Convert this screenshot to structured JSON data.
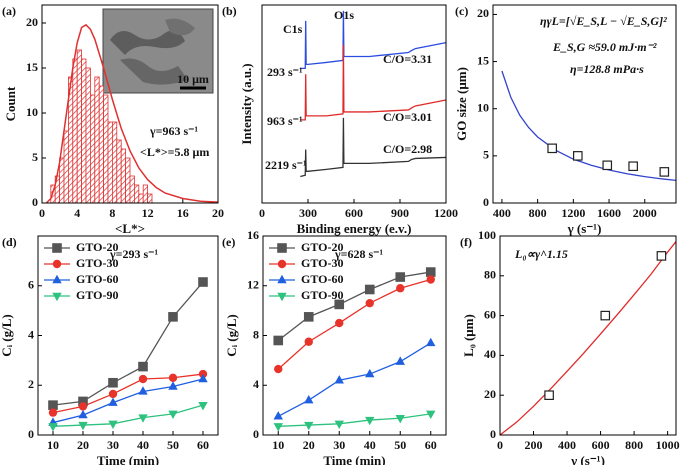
{
  "chart_data": [
    {
      "type": "histogram",
      "panel_label": "(a)",
      "x_label": "<L*>",
      "y_label": "Count",
      "xlim": [
        0,
        20
      ],
      "ylim": [
        0,
        22
      ],
      "xticks": [
        0,
        4,
        8,
        12,
        16,
        20
      ],
      "yticks": [
        0,
        5,
        10,
        15,
        20
      ],
      "bins": [
        1,
        1.5,
        2,
        2.5,
        3,
        3.5,
        4,
        4.5,
        5,
        5.5,
        6,
        6.5,
        7,
        7.5,
        8,
        8.5,
        9,
        9.5,
        10,
        10.5,
        11,
        11.5,
        12,
        12.5
      ],
      "counts": [
        2,
        3,
        5,
        8,
        14,
        16,
        17,
        16,
        15,
        12,
        14,
        13,
        12,
        9,
        9,
        7,
        6,
        5,
        3,
        2,
        1,
        2,
        1
      ],
      "color": "#e03030",
      "fit_x": [
        0.5,
        1,
        1.5,
        2,
        2.5,
        3,
        3.5,
        4,
        4.5,
        5,
        5.5,
        6,
        7,
        8,
        9,
        10,
        11,
        12,
        13,
        14,
        16,
        18,
        20
      ],
      "fit_values": [
        0,
        0.5,
        2,
        4.5,
        8,
        11.5,
        15,
        17.8,
        19.5,
        19.8,
        19.3,
        18.2,
        15,
        11.5,
        8.3,
        5.8,
        3.9,
        2.6,
        1.7,
        1.1,
        0.5,
        0.2,
        0.1
      ],
      "annotations": [
        "10 μm",
        "γ=963 s⁻¹",
        "<L*>=5.8 μm"
      ]
    },
    {
      "type": "line",
      "panel_label": "(b)",
      "x_label": "Binding energy (e.v.)",
      "y_label": "Intensity (a.u.)",
      "xlim": [
        0,
        1200
      ],
      "ylim": [
        0,
        100
      ],
      "xticks": [
        0,
        300,
        600,
        900,
        1200
      ],
      "x": [
        250,
        282,
        285,
        288,
        300,
        420,
        528,
        531,
        534,
        560,
        700,
        955,
        975,
        1000,
        1200
      ],
      "series": [
        {
          "name": "293 s⁻¹",
          "color": "#2a4de0",
          "marker": "none",
          "values": [
            68,
            68,
            92,
            70,
            70,
            71,
            72,
            97,
            74,
            74,
            74,
            76,
            77,
            78,
            81
          ]
        },
        {
          "name": "963 s⁻¹",
          "color": "#e02a2a",
          "marker": "none",
          "values": [
            42,
            42,
            65,
            44,
            44,
            44,
            45,
            80,
            46,
            46,
            46,
            47,
            48,
            49,
            52
          ]
        },
        {
          "name": "2219 s⁻¹",
          "color": "#333333",
          "marker": "none",
          "values": [
            13.4,
            14,
            27,
            16,
            16,
            17,
            18,
            43,
            20,
            20,
            20,
            21,
            22,
            22.5,
            23
          ]
        }
      ],
      "annotations": [
        "C1s",
        "O1s",
        "C/O=3.31",
        "C/O=3.01",
        "C/O=2.98"
      ]
    },
    {
      "type": "scatter",
      "panel_label": "(c)",
      "x_label": "γ (s⁻¹)",
      "y_label": "GO size (μm)",
      "xlim": [
        300,
        2350
      ],
      "ylim": [
        0,
        21
      ],
      "xticks": [
        400,
        800,
        1200,
        1600,
        2000
      ],
      "yticks": [
        0,
        5,
        10,
        15,
        20
      ],
      "series": [
        {
          "color": "#222222",
          "marker": "square",
          "x": [
            963,
            1250,
            1580,
            1870,
            2219
          ],
          "values": [
            5.8,
            5.0,
            4.0,
            3.9,
            3.3
          ]
        },
        {
          "color": "#3344cc",
          "marker": "none",
          "x": [
            400,
            500,
            600,
            700,
            800,
            1000,
            1200,
            1400,
            1600,
            1800,
            2000,
            2200,
            2350
          ],
          "values": [
            14,
            11.2,
            9.3,
            8,
            7,
            5.6,
            4.65,
            4,
            3.5,
            3.1,
            2.8,
            2.55,
            2.4
          ]
        }
      ],
      "annotations": [
        "ηγL=[√E_S,L − √E_S,G]²",
        "E_S,G ≈59.0 mJ·m⁻²",
        "η=128.8 mPa·s"
      ]
    },
    {
      "type": "line",
      "panel_label": "(d)",
      "x_label": "Time (min)",
      "y_label": "Cᵢ (g/L)",
      "legend": "upper left",
      "xlim": [
        5,
        65
      ],
      "ylim": [
        0,
        8
      ],
      "xticks": [
        10,
        20,
        30,
        40,
        50,
        60
      ],
      "yticks": [
        0,
        2,
        4,
        6
      ],
      "x": [
        10,
        20,
        30,
        40,
        50,
        60
      ],
      "series": [
        {
          "name": "GTO-20",
          "color": "#555555",
          "marker": "square",
          "values": [
            1.2,
            1.35,
            2.1,
            2.75,
            4.75,
            6.15
          ]
        },
        {
          "name": "GTO-30",
          "color": "#e8332a",
          "marker": "circle",
          "values": [
            0.9,
            1.15,
            1.65,
            2.25,
            2.3,
            2.45
          ]
        },
        {
          "name": "GTO-60",
          "color": "#1f5fe0",
          "marker": "triangle",
          "values": [
            0.5,
            0.8,
            1.3,
            1.75,
            1.95,
            2.25
          ]
        },
        {
          "name": "GTO-90",
          "color": "#2ec27e",
          "marker": "inv-triangle",
          "values": [
            0.35,
            0.4,
            0.45,
            0.7,
            0.85,
            1.2
          ]
        }
      ],
      "annotations": [
        "γ=293 s⁻¹"
      ]
    },
    {
      "type": "line",
      "panel_label": "(e)",
      "x_label": "Time (min)",
      "y_label": "Cᵢ (g/L)",
      "legend": "upper left",
      "xlim": [
        5,
        65
      ],
      "ylim": [
        0,
        16
      ],
      "xticks": [
        10,
        20,
        30,
        40,
        50,
        60
      ],
      "yticks": [
        0,
        4,
        8,
        12,
        16
      ],
      "x": [
        10,
        20,
        30,
        40,
        50,
        60
      ],
      "series": [
        {
          "name": "GTO-20",
          "color": "#555555",
          "marker": "square",
          "values": [
            7.6,
            9.5,
            10.5,
            11.7,
            12.7,
            13.1
          ]
        },
        {
          "name": "GTO-30",
          "color": "#e8332a",
          "marker": "circle",
          "values": [
            5.3,
            7.5,
            9.0,
            10.6,
            11.8,
            12.5
          ]
        },
        {
          "name": "GTO-60",
          "color": "#1f5fe0",
          "marker": "triangle",
          "values": [
            1.5,
            2.8,
            4.4,
            4.9,
            5.9,
            7.4
          ]
        },
        {
          "name": "GTO-90",
          "color": "#2ec27e",
          "marker": "inv-triangle",
          "values": [
            0.7,
            0.8,
            0.9,
            1.2,
            1.35,
            1.7
          ]
        }
      ],
      "annotations": [
        "γ=628 s⁻¹"
      ]
    },
    {
      "type": "scatter",
      "panel_label": "(f)",
      "x_label": "γ (s⁻¹)",
      "y_label": "L₀ (μm)",
      "xlim": [
        0,
        1050
      ],
      "ylim": [
        0,
        100
      ],
      "xticks": [
        0,
        200,
        400,
        600,
        800,
        1000
      ],
      "yticks": [
        0,
        20,
        40,
        60,
        80,
        100
      ],
      "series": [
        {
          "color": "#222222",
          "marker": "square",
          "x": [
            293,
            628,
            963
          ],
          "values": [
            20,
            60,
            90
          ]
        },
        {
          "color": "#e02a2a",
          "marker": "none",
          "x": [
            0,
            100,
            200,
            300,
            400,
            500,
            600,
            700,
            800,
            900,
            1000,
            1050
          ],
          "values": [
            0,
            6.5,
            14.4,
            23,
            32,
            41.2,
            50.8,
            60.5,
            70.5,
            80.7,
            91.9,
            97.2
          ]
        }
      ],
      "annotations": [
        "L₀∝γ^1.15"
      ]
    }
  ]
}
